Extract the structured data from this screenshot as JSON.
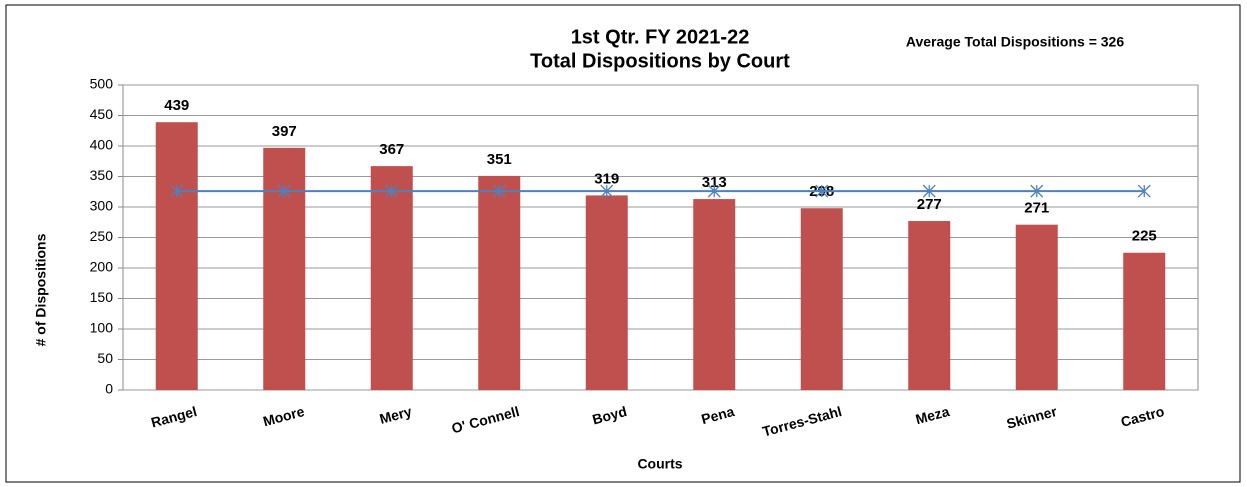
{
  "chart_data": {
    "type": "bar",
    "title": [
      "1st Qtr. FY 2021-22",
      "Total Dispositions by Court"
    ],
    "annotation": "Average Total Dispositions = 326",
    "x_label": "Courts",
    "y_label": "# of Dispositions",
    "categories": [
      "Rangel",
      "Moore",
      "Mery",
      "O' Connell",
      "Boyd",
      "Pena",
      "Torres-Stahl",
      "Meza",
      "Skinner",
      "Castro"
    ],
    "values": [
      439,
      397,
      367,
      351,
      319,
      313,
      298,
      277,
      271,
      225
    ],
    "color": "#c0504d",
    "average": {
      "values": [
        326,
        326,
        326,
        326,
        326,
        326,
        326,
        326,
        326,
        326
      ],
      "color": "#4f81bd"
    },
    "ylim": [
      0,
      500
    ],
    "yticks": [
      0,
      50,
      100,
      150,
      200,
      250,
      300,
      350,
      400,
      450,
      500
    ],
    "grid": true
  }
}
